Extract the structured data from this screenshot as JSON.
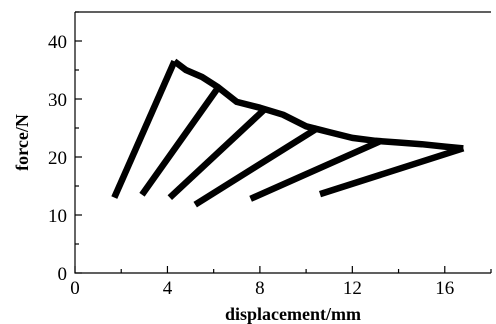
{
  "chart_data": {
    "type": "line",
    "title": "",
    "xlabel": "displacement/mm",
    "ylabel": "force/N",
    "xlim": [
      0,
      18
    ],
    "ylim": [
      0,
      45
    ],
    "x_ticks": [
      0,
      4,
      8,
      12,
      16
    ],
    "x_tick_labels": [
      "0",
      "4",
      "8",
      "12",
      "16"
    ],
    "x_minor_ticks": [
      2,
      6,
      10,
      14,
      18
    ],
    "y_ticks": [
      0,
      10,
      20,
      30,
      40
    ],
    "y_tick_labels": [
      "0",
      "10",
      "20",
      "30",
      "40"
    ],
    "y_minor_ticks": [
      5,
      15,
      25,
      35,
      45
    ],
    "grid": false,
    "series": [
      {
        "kind": "envelope",
        "x": [
          4.3,
          4.8,
          5.5,
          6.2,
          7.0,
          8.0,
          9.0,
          10.0,
          11.0,
          12.0,
          13.0,
          14.0,
          15.0,
          16.0,
          16.8
        ],
        "y": [
          36.5,
          35.0,
          33.8,
          32.0,
          29.5,
          28.5,
          27.3,
          25.3,
          24.3,
          23.3,
          22.8,
          22.5,
          22.2,
          21.8,
          21.5
        ]
      },
      {
        "kind": "reload",
        "x": [
          1.7,
          4.3
        ],
        "y": [
          13.0,
          36.5
        ]
      },
      {
        "kind": "reload",
        "x": [
          2.9,
          6.2
        ],
        "y": [
          13.5,
          32.0
        ]
      },
      {
        "kind": "reload",
        "x": [
          4.1,
          8.2
        ],
        "y": [
          13.0,
          28.2
        ]
      },
      {
        "kind": "reload",
        "x": [
          5.2,
          10.5
        ],
        "y": [
          11.8,
          25.0
        ]
      },
      {
        "kind": "reload",
        "x": [
          7.6,
          13.2
        ],
        "y": [
          12.8,
          22.7
        ]
      },
      {
        "kind": "reload",
        "x": [
          10.6,
          16.8
        ],
        "y": [
          13.6,
          21.5
        ]
      }
    ]
  }
}
